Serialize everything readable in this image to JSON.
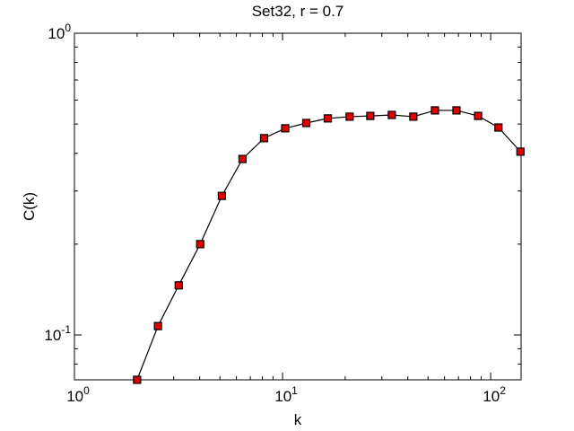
{
  "chart_data": {
    "type": "line",
    "title": "Set32, r = 0.7",
    "xlabel": "k",
    "ylabel": "C(k)",
    "log_x": true,
    "log_y": true,
    "marker": "square",
    "line_color": "#000000",
    "marker_color": "#e00000",
    "xlim": [
      1,
      140
    ],
    "ylim": [
      0.071,
      1
    ],
    "xticks": [
      {
        "value": 1,
        "label": "10",
        "exponent": "0"
      },
      {
        "value": 10,
        "label": "10",
        "exponent": "1"
      },
      {
        "value": 100,
        "label": "10",
        "exponent": "2"
      }
    ],
    "yticks": [
      {
        "value": 0.1,
        "label": "10",
        "exponent": "-1"
      },
      {
        "value": 1,
        "label": "10",
        "exponent": "0"
      }
    ],
    "x": [
      2,
      2.52,
      3.17,
      4.02,
      5.11,
      6.42,
      8.15,
      10.3,
      13.0,
      16.5,
      21.0,
      26.4,
      33.5,
      42.5,
      54.0,
      68.5,
      87,
      109,
      139
    ],
    "series": [
      {
        "values": [
          0.071,
          0.107,
          0.146,
          0.2,
          0.289,
          0.383,
          0.449,
          0.484,
          0.504,
          0.522,
          0.529,
          0.532,
          0.536,
          0.529,
          0.555,
          0.555,
          0.532,
          0.487,
          0.405
        ]
      }
    ]
  }
}
